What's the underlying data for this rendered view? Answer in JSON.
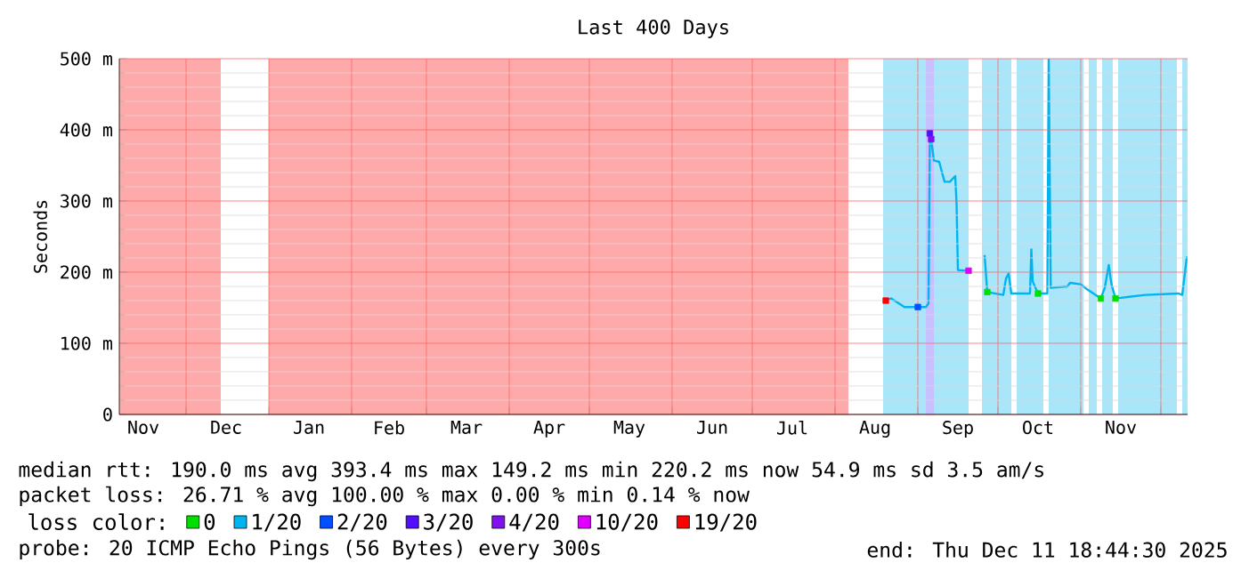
{
  "chart_data": {
    "type": "line",
    "title": "Last 400 Days",
    "ylabel": "Seconds",
    "xlim": [
      "2024-11-06",
      "2025-12-11"
    ],
    "xticks": [
      {
        "value": "2024-11-15",
        "label": "Nov"
      },
      {
        "value": "2024-12-01",
        "label": null
      },
      {
        "value": "2024-12-16",
        "label": "Dec"
      },
      {
        "value": "2025-01-01",
        "label": null
      },
      {
        "value": "2025-01-16",
        "label": "Jan"
      },
      {
        "value": "2025-02-01",
        "label": null
      },
      {
        "value": "2025-02-15",
        "label": "Feb"
      },
      {
        "value": "2025-03-01",
        "label": null
      },
      {
        "value": "2025-03-16",
        "label": "Mar"
      },
      {
        "value": "2025-04-01",
        "label": null
      },
      {
        "value": "2025-04-16",
        "label": "Apr"
      },
      {
        "value": "2025-05-01",
        "label": null
      },
      {
        "value": "2025-05-16",
        "label": "May"
      },
      {
        "value": "2025-06-01",
        "label": null
      },
      {
        "value": "2025-06-16",
        "label": "Jun"
      },
      {
        "value": "2025-07-01",
        "label": null
      },
      {
        "value": "2025-07-16",
        "label": "Jul"
      },
      {
        "value": "2025-08-01",
        "label": null
      },
      {
        "value": "2025-08-16",
        "label": "Aug"
      },
      {
        "value": "2025-09-01",
        "label": null
      },
      {
        "value": "2025-09-16",
        "label": "Sep"
      },
      {
        "value": "2025-10-01",
        "label": null
      },
      {
        "value": "2025-10-16",
        "label": "Oct"
      },
      {
        "value": "2025-11-01",
        "label": null
      },
      {
        "value": "2025-11-16",
        "label": "Nov"
      },
      {
        "value": "2025-12-01",
        "label": null
      }
    ],
    "ylim": [
      0,
      500
    ],
    "yticks": [
      0,
      {
        "value": 100,
        "label": "100 m"
      },
      {
        "value": 200,
        "label": "200 m"
      },
      {
        "value": 300,
        "label": "300 m"
      },
      {
        "value": 400,
        "label": "400 m"
      },
      {
        "value": 500,
        "label": "500 m"
      }
    ],
    "grid": true,
    "legend": "bottom",
    "legend_title": "loss color:",
    "bands": [
      {
        "axis": "x",
        "from": "2024-11-06",
        "to": "2024-12-14",
        "color": "#ffaaaa"
      },
      {
        "axis": "x",
        "from": "2025-01-01",
        "to": "2025-08-06",
        "color": "#ffaaaa"
      },
      {
        "axis": "x",
        "from": "2025-08-19",
        "to": "2025-09-20",
        "color": "#aae6fa"
      },
      {
        "axis": "x",
        "from": "2025-09-04",
        "to": "2025-09-07",
        "color": "#c8c0ff"
      },
      {
        "axis": "x",
        "from": "2025-09-25",
        "to": "2025-10-06",
        "color": "#aae6fa"
      },
      {
        "axis": "x",
        "from": "2025-10-08",
        "to": "2025-10-18",
        "color": "#aae6fa"
      },
      {
        "axis": "x",
        "from": "2025-10-20",
        "to": "2025-11-02",
        "color": "#aae6fa"
      },
      {
        "axis": "x",
        "from": "2025-11-04",
        "to": "2025-11-07",
        "color": "#aae6fa"
      },
      {
        "axis": "x",
        "from": "2025-11-09",
        "to": "2025-11-13",
        "color": "#aae6fa"
      },
      {
        "axis": "x",
        "from": "2025-11-15",
        "to": "2025-12-07",
        "color": "#aae6fa"
      },
      {
        "axis": "x",
        "from": "2025-12-09",
        "to": "2025-12-11",
        "color": "#aae6fa"
      }
    ],
    "series": [
      {
        "name": "0",
        "type": "scatter",
        "color": "#00e000",
        "x": [
          "2025-09-27",
          "2025-10-16",
          "2025-11-08T12:00",
          "2025-11-14"
        ],
        "values": [
          172,
          170,
          163,
          163
        ]
      },
      {
        "name": "1/20",
        "color": "#00b4f0",
        "x": [
          "2025-08-20",
          "2025-08-22",
          "2025-08-27",
          "2025-09-04",
          "2025-09-05",
          "2025-09-05T12:00",
          "2025-09-06",
          "2025-09-07",
          "2025-09-09",
          "2025-09-11",
          "2025-09-13",
          "2025-09-15",
          "2025-09-15T12:00",
          "2025-09-16",
          "2025-09-20",
          "2025-09-23",
          "2025-09-26",
          "2025-09-27",
          "2025-10-03",
          "2025-10-04",
          "2025-10-05",
          "2025-10-06",
          "2025-10-13",
          "2025-10-13T12:00",
          "2025-10-14",
          "2025-10-16",
          "2025-10-19T12:00",
          "2025-10-20",
          "2025-10-20T18:00",
          "2025-10-27",
          "2025-10-28",
          "2025-11-01",
          "2025-11-03",
          "2025-11-08T12:00",
          "2025-11-10",
          "2025-11-11T12:00",
          "2025-11-12T12:00",
          "2025-11-14",
          "2025-11-25",
          "2025-12-07T12:00",
          "2025-12-09",
          "2025-12-10T18:00"
        ],
        "values": [
          160,
          163,
          151,
          151,
          156,
          395,
          387,
          357,
          355,
          327,
          327,
          335,
          297,
          203,
          202,
          null,
          224,
          172,
          168,
          191,
          198,
          170,
          170,
          232,
          187,
          170,
          170,
          500,
          178,
          180,
          185,
          183,
          177,
          163,
          178,
          210,
          183,
          163,
          168,
          170,
          168,
          222
        ]
      },
      {
        "name": "2/20",
        "type": "scatter",
        "color": "#0050ff",
        "x": [
          "2025-09-01"
        ],
        "values": [
          151
        ]
      },
      {
        "name": "3/20",
        "type": "scatter",
        "color": "#5010ff",
        "x": [
          "2025-09-05T12:00"
        ],
        "values": [
          395
        ]
      },
      {
        "name": "4/20",
        "type": "scatter",
        "color": "#8010f0",
        "x": [
          "2025-09-06"
        ],
        "values": [
          387
        ]
      },
      {
        "name": "10/20",
        "type": "scatter",
        "color": "#e000ff",
        "x": [
          "2025-09-20"
        ],
        "values": [
          202
        ]
      },
      {
        "name": "19/20",
        "type": "scatter",
        "color": "#ff0000",
        "x": [
          "2025-08-20"
        ],
        "values": [
          160
        ]
      }
    ],
    "annotations": [
      "median rtt:  190.0 ms avg  393.4 ms max  149.2 ms min  220.2 ms now  54.9 ms sd  3.5   am/s",
      "packet loss: 26.71 % avg  100.00 % max  0.00 % min  0.14 % now",
      "probe:        20 ICMP Echo Pings (56 Bytes) every 300s",
      "end: Thu Dec 11 18:44:30 2025"
    ]
  }
}
